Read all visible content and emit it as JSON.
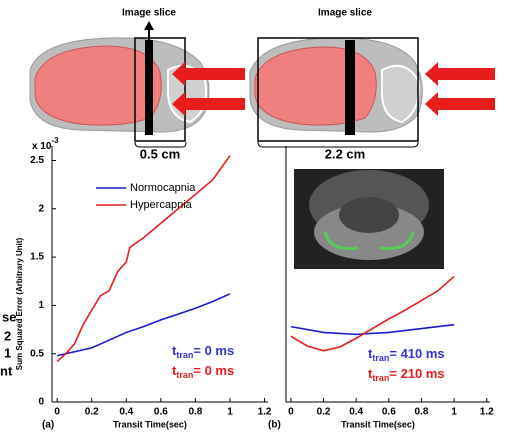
{
  "figure": {
    "slice_labels": [
      "Image slice",
      "Image slice"
    ],
    "scales": [
      "0.5 cm",
      "2.2 cm"
    ],
    "edge_fragments": [
      "se",
      "2",
      "1",
      "nt"
    ]
  },
  "chart_data": [
    {
      "type": "line",
      "panel_label": "(a)",
      "y_exponent": {
        "base": "x 10",
        "power": "-3"
      },
      "ylabel": "Sum Squared Error (Arbitrary Unit)",
      "xlabel": "Transit Time(sec)",
      "xlim": [
        -0.03,
        1.22
      ],
      "ylim": [
        0,
        2.65
      ],
      "xticks": [
        0,
        0.2,
        0.4,
        0.6,
        0.8,
        1,
        1.2
      ],
      "yticks": [
        0,
        0.5,
        1,
        1.5,
        2,
        2.5
      ],
      "legend": "upper left",
      "series": [
        {
          "name": "Normocapnia",
          "color": "#1a1acc",
          "x": [
            0,
            0.1,
            0.2,
            0.3,
            0.4,
            0.5,
            0.6,
            0.7,
            0.8,
            0.9,
            1.0
          ],
          "values": [
            0.48,
            0.52,
            0.56,
            0.64,
            0.72,
            0.78,
            0.85,
            0.91,
            0.97,
            1.04,
            1.12
          ]
        },
        {
          "name": "Hypercapnia",
          "color": "#e81c1c",
          "x": [
            0,
            0.05,
            0.1,
            0.15,
            0.2,
            0.25,
            0.3,
            0.35,
            0.4,
            0.42,
            0.5,
            0.6,
            0.7,
            0.8,
            0.9,
            1.0
          ],
          "values": [
            0.42,
            0.5,
            0.6,
            0.8,
            0.95,
            1.1,
            1.15,
            1.35,
            1.45,
            1.6,
            1.7,
            1.85,
            2.0,
            2.15,
            2.3,
            2.55
          ]
        }
      ],
      "annotations": [
        {
          "t": "t",
          "sub": "tran",
          "rest": "= 0 ms",
          "color": "#3333cc"
        },
        {
          "t": "t",
          "sub": "tran",
          "rest": "= 0 ms",
          "color": "#e81c1c"
        }
      ]
    },
    {
      "type": "line",
      "panel_label": "(b)",
      "xlabel": "Transit Time(sec)",
      "xlim": [
        -0.03,
        1.22
      ],
      "ylim": [
        0,
        2.65
      ],
      "xticks": [
        0,
        0.2,
        0.4,
        0.6,
        0.8,
        1,
        1.2
      ],
      "series": [
        {
          "color": "#1a1acc",
          "x": [
            0,
            0.2,
            0.4,
            0.6,
            0.8,
            1.0
          ],
          "values": [
            0.78,
            0.72,
            0.7,
            0.72,
            0.76,
            0.8
          ]
        },
        {
          "color": "#e81c1c",
          "x": [
            0,
            0.1,
            0.2,
            0.3,
            0.4,
            0.5,
            0.6,
            0.7,
            0.8,
            0.9,
            1.0
          ],
          "values": [
            0.68,
            0.58,
            0.53,
            0.57,
            0.66,
            0.76,
            0.86,
            0.95,
            1.05,
            1.15,
            1.3
          ]
        }
      ],
      "annotations": [
        {
          "t": "t",
          "sub": "tran",
          "rest": "= 410 ms",
          "color": "#3333cc"
        },
        {
          "t": "t",
          "sub": "tran",
          "rest": "= 210 ms",
          "color": "#e81c1c"
        }
      ]
    }
  ]
}
